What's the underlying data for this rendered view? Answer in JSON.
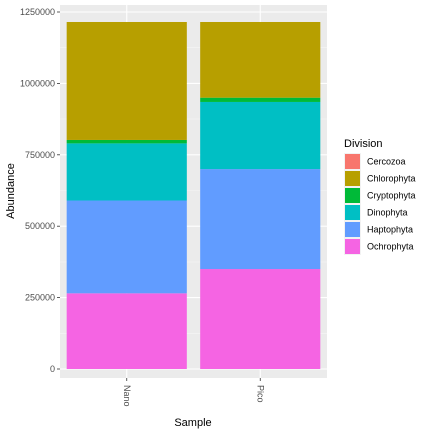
{
  "chart_data": {
    "type": "bar",
    "stacked": true,
    "title": "",
    "xlabel": "Sample",
    "ylabel": "Abundance",
    "categories": [
      "Nano",
      "Pico"
    ],
    "ylim": [
      0,
      1250000
    ],
    "yticks": [
      0,
      250000,
      500000,
      750000,
      1000000,
      1250000
    ],
    "ytick_labels": [
      "0",
      "250000",
      "500000",
      "750000",
      "1000000",
      "1250000"
    ],
    "grid": true,
    "legend": {
      "title": "Division",
      "placement": "right"
    },
    "series": [
      {
        "name": "Ochrophyta",
        "color": "#F564E3",
        "values": [
          265000,
          350000
        ]
      },
      {
        "name": "Haptophyta",
        "color": "#619CFF",
        "values": [
          325000,
          350000
        ]
      },
      {
        "name": "Dinophyta",
        "color": "#00BFC4",
        "values": [
          200000,
          235000
        ]
      },
      {
        "name": "Cryptophyta",
        "color": "#00BA38",
        "values": [
          12000,
          15000
        ]
      },
      {
        "name": "Chlorophyta",
        "color": "#B79F00",
        "values": [
          413000,
          265000
        ]
      },
      {
        "name": "Cercozoa",
        "color": "#F8766D",
        "values": [
          0,
          0
        ]
      }
    ],
    "legend_order": [
      "Cercozoa",
      "Chlorophyta",
      "Cryptophyta",
      "Dinophyta",
      "Haptophyta",
      "Ochrophyta"
    ]
  }
}
